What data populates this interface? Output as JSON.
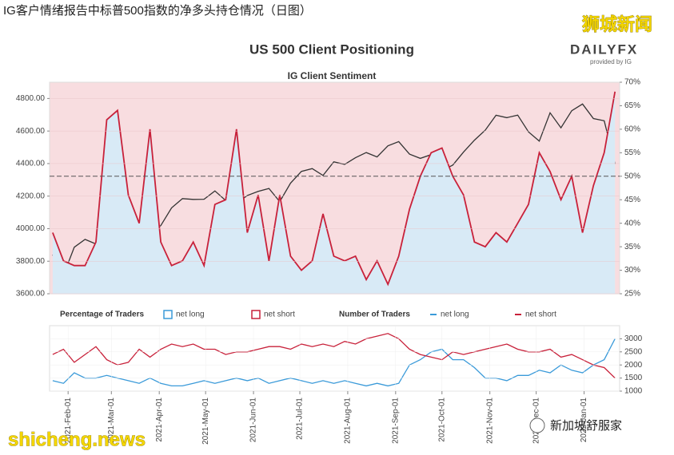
{
  "header": {
    "title": "IG客户情绪报告中标普500指数的净多头持仓情况（日图）"
  },
  "watermarks": {
    "top": "狮城新闻",
    "bottom_left": "shicheng.news",
    "bottom_right": "新加坡舒服家"
  },
  "brand": {
    "name": "DAILYFX",
    "sub": "provided by IG"
  },
  "chart_data": [
    {
      "type": "line",
      "title": "US 500 Client Positioning",
      "subtitle": "IG Client Sentiment",
      "background": "#f8dde0",
      "x": [
        "2021-01-22",
        "2021-01-29",
        "2021-02-05",
        "2021-02-12",
        "2021-02-19",
        "2021-02-26",
        "2021-03-05",
        "2021-03-12",
        "2021-03-19",
        "2021-03-26",
        "2021-04-02",
        "2021-04-09",
        "2021-04-16",
        "2021-04-23",
        "2021-04-30",
        "2021-05-07",
        "2021-05-14",
        "2021-05-21",
        "2021-05-28",
        "2021-06-04",
        "2021-06-11",
        "2021-06-18",
        "2021-06-25",
        "2021-07-02",
        "2021-07-09",
        "2021-07-16",
        "2021-07-23",
        "2021-07-30",
        "2021-08-06",
        "2021-08-13",
        "2021-08-20",
        "2021-08-27",
        "2021-09-03",
        "2021-09-10",
        "2021-09-17",
        "2021-09-24",
        "2021-10-01",
        "2021-10-08",
        "2021-10-15",
        "2021-10-22",
        "2021-10-29",
        "2021-11-05",
        "2021-11-12",
        "2021-11-19",
        "2021-11-26",
        "2021-12-03",
        "2021-12-10",
        "2021-12-17",
        "2021-12-24",
        "2021-12-31",
        "2022-01-07",
        "2022-01-14",
        "2022-01-21"
      ],
      "xlim": [
        "2021-01-20",
        "2022-01-24"
      ],
      "series": [
        {
          "color": "#333333",
          "values": [
            3840,
            3714,
            3886,
            3934,
            3906,
            3811,
            3841,
            3943,
            3913,
            3974,
            4019,
            4128,
            4185,
            4180,
            4181,
            4232,
            4173,
            4155,
            4204,
            4229,
            4247,
            4166,
            4280,
            4352,
            4369,
            4327,
            4411,
            4395,
            4436,
            4468,
            4441,
            4509,
            4535,
            4458,
            4432,
            4455,
            4357,
            4391,
            4471,
            4544,
            4605,
            4697,
            4682,
            4698,
            4595,
            4538,
            4712,
            4620,
            4725,
            4766,
            4677,
            4663,
            4398
          ]
        },
        {
          "axis": "y2",
          "color": "#c8213a",
          "fill": "#d8eaf6",
          "values": [
            38,
            32,
            31,
            31,
            36,
            62,
            64,
            46,
            40,
            60,
            36,
            31,
            32,
            36,
            31,
            44,
            45,
            60,
            38,
            46,
            32,
            46,
            33,
            30,
            32,
            42,
            33,
            32,
            33,
            28,
            32,
            27,
            33,
            43,
            50,
            55,
            56,
            50,
            46,
            36,
            35,
            38,
            36,
            40,
            44,
            55,
            51,
            45,
            50,
            38,
            48,
            55,
            68
          ]
        }
      ],
      "ylim": [
        3600,
        4900
      ],
      "yticks": [
        {
          "value": 3600,
          "label": "3600.00"
        },
        {
          "value": 3800,
          "label": "3800.00"
        },
        {
          "value": 4000,
          "label": "4000.00"
        },
        {
          "value": 4200,
          "label": "4200.00"
        },
        {
          "value": 4400,
          "label": "4400.00"
        },
        {
          "value": 4600,
          "label": "4600.00"
        },
        {
          "value": 4800,
          "label": "4800.00"
        }
      ],
      "y2lim": [
        25,
        70
      ],
      "y2ticks": [
        {
          "value": 25,
          "label": "25%"
        },
        {
          "value": 30,
          "label": "30%"
        },
        {
          "value": 35,
          "label": "35%"
        },
        {
          "value": 40,
          "label": "40%"
        },
        {
          "value": 45,
          "label": "45%"
        },
        {
          "value": 50,
          "label": "50%"
        },
        {
          "value": 55,
          "label": "55%"
        },
        {
          "value": 60,
          "label": "60%"
        },
        {
          "value": 65,
          "label": "65%"
        },
        {
          "value": 70,
          "label": "70%"
        }
      ],
      "y2_reference_line": 50,
      "grid": true,
      "legend": {
        "title": "Percentage of Traders",
        "items": [
          {
            "name": "net long",
            "color": "#3a9ad9"
          },
          {
            "name": "net short",
            "color": "#c8213a"
          }
        ]
      }
    },
    {
      "type": "line",
      "legend_title": "Number of Traders",
      "x": [
        "2021-01-22",
        "2021-01-29",
        "2021-02-05",
        "2021-02-12",
        "2021-02-19",
        "2021-02-26",
        "2021-03-05",
        "2021-03-12",
        "2021-03-19",
        "2021-03-26",
        "2021-04-02",
        "2021-04-09",
        "2021-04-16",
        "2021-04-23",
        "2021-04-30",
        "2021-05-07",
        "2021-05-14",
        "2021-05-21",
        "2021-05-28",
        "2021-06-04",
        "2021-06-11",
        "2021-06-18",
        "2021-06-25",
        "2021-07-02",
        "2021-07-09",
        "2021-07-16",
        "2021-07-23",
        "2021-07-30",
        "2021-08-06",
        "2021-08-13",
        "2021-08-20",
        "2021-08-27",
        "2021-09-03",
        "2021-09-10",
        "2021-09-17",
        "2021-09-24",
        "2021-10-01",
        "2021-10-08",
        "2021-10-15",
        "2021-10-22",
        "2021-10-29",
        "2021-11-05",
        "2021-11-12",
        "2021-11-19",
        "2021-11-26",
        "2021-12-03",
        "2021-12-10",
        "2021-12-17",
        "2021-12-24",
        "2021-12-31",
        "2022-01-07",
        "2022-01-14",
        "2022-01-21"
      ],
      "xlim": [
        "2021-01-20",
        "2022-01-24"
      ],
      "xticks": [
        {
          "value": "2021-02-01",
          "label": "2021-Feb-01"
        },
        {
          "value": "2021-03-01",
          "label": "2021-Mar-01"
        },
        {
          "value": "2021-04-01",
          "label": "2021-Apr-01"
        },
        {
          "value": "2021-05-01",
          "label": "2021-May-01"
        },
        {
          "value": "2021-06-01",
          "label": "2021-Jun-01"
        },
        {
          "value": "2021-07-01",
          "label": "2021-Jul-01"
        },
        {
          "value": "2021-08-01",
          "label": "2021-Aug-01"
        },
        {
          "value": "2021-09-01",
          "label": "2021-Sep-01"
        },
        {
          "value": "2021-10-01",
          "label": "2021-Oct-01"
        },
        {
          "value": "2021-11-01",
          "label": "2021-Nov-01"
        },
        {
          "value": "2021-12-01",
          "label": "2021-Dec-01"
        },
        {
          "value": "2022-01-01",
          "label": "2022-Jan-01"
        }
      ],
      "series": [
        {
          "name": "net long",
          "axis": "y2",
          "color": "#3a9ad9",
          "values": [
            1400,
            1300,
            1700,
            1500,
            1500,
            1600,
            1500,
            1400,
            1300,
            1500,
            1300,
            1200,
            1200,
            1300,
            1400,
            1300,
            1400,
            1500,
            1400,
            1500,
            1300,
            1400,
            1500,
            1400,
            1300,
            1400,
            1300,
            1400,
            1300,
            1200,
            1300,
            1200,
            1300,
            2000,
            2200,
            2500,
            2600,
            2200,
            2200,
            1900,
            1500,
            1500,
            1400,
            1600,
            1600,
            1800,
            1700,
            2000,
            1800,
            1700,
            2000,
            2200,
            3000
          ]
        },
        {
          "name": "net short",
          "axis": "y2",
          "color": "#c8213a",
          "values": [
            2400,
            2600,
            2100,
            2400,
            2700,
            2200,
            2000,
            2100,
            2600,
            2300,
            2600,
            2800,
            2700,
            2800,
            2600,
            2600,
            2400,
            2500,
            2500,
            2600,
            2700,
            2700,
            2600,
            2800,
            2700,
            2800,
            2700,
            2900,
            2800,
            3000,
            3100,
            3200,
            3000,
            2600,
            2400,
            2300,
            2200,
            2500,
            2400,
            2500,
            2600,
            2700,
            2800,
            2600,
            2500,
            2500,
            2600,
            2300,
            2400,
            2200,
            2000,
            1900,
            1500
          ]
        }
      ],
      "y2lim": [
        1000,
        3500
      ],
      "y2ticks": [
        1000,
        1500,
        2000,
        2500,
        3000
      ],
      "grid": true
    }
  ]
}
